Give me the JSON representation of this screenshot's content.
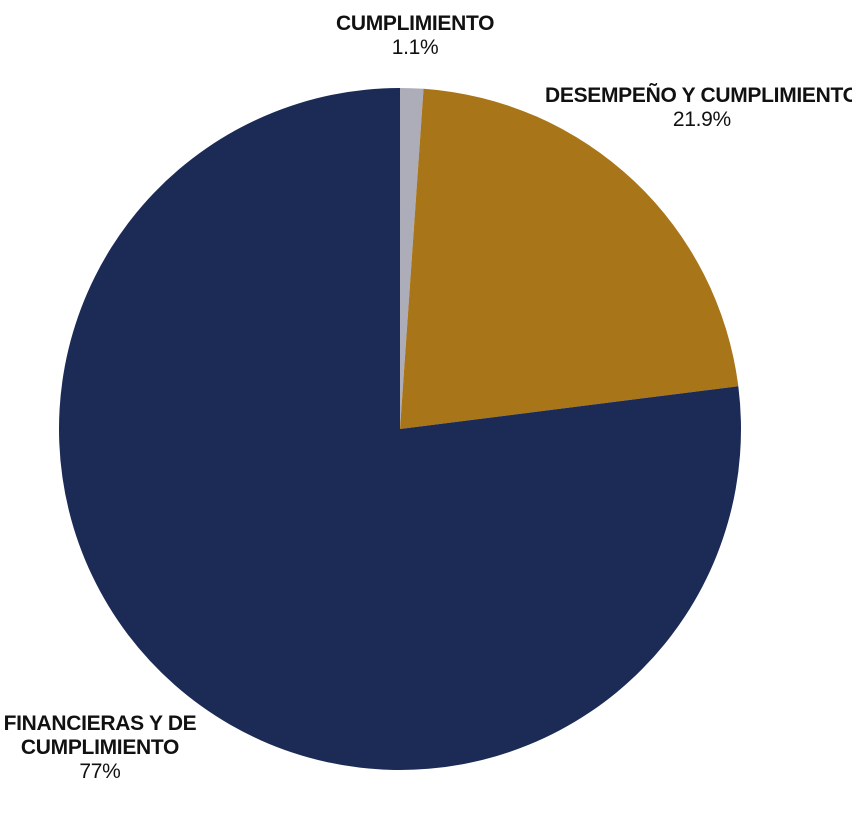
{
  "chart_data": {
    "type": "pie",
    "start_angle_deg": 90,
    "direction": "clockwise",
    "slices": [
      {
        "category": "CUMPLIMIENTO",
        "value": 1.1,
        "label": "1.1%",
        "color": "#adadb9"
      },
      {
        "category": "DESEMPEÑO Y CUMPLIMIENTO",
        "value": 21.9,
        "label": "21.9%",
        "color": "#a97519"
      },
      {
        "category": "FINANCIERAS Y DE CUMPLIMIENTO",
        "value": 77,
        "label": "77%",
        "color": "#1b2b56"
      }
    ],
    "legend": "none"
  }
}
